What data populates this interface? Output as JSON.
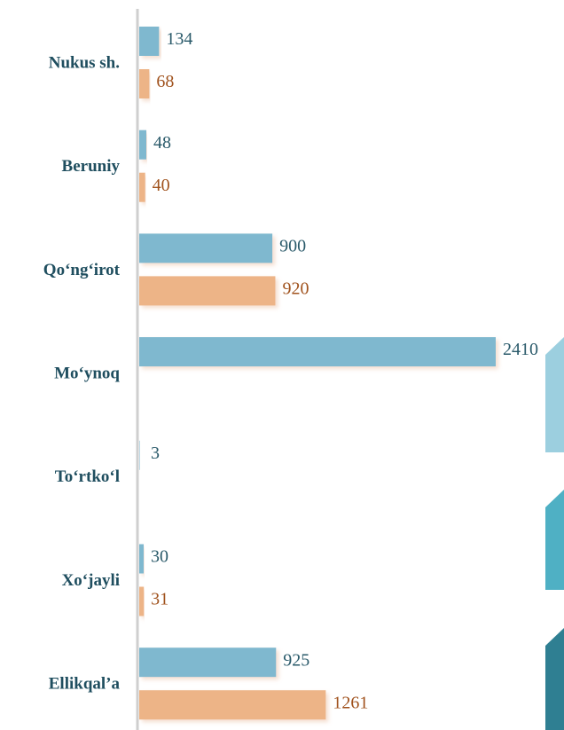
{
  "chart_data": {
    "type": "bar",
    "orientation": "horizontal",
    "categories": [
      "Nukus sh.",
      "Beruniy",
      "Qo‘ng‘irot",
      "Mo‘ynoq",
      "To‘rtko‘l",
      "Xo‘jayli",
      "Ellikqal’a"
    ],
    "series": [
      {
        "color": "#7fb8cf",
        "label_color": "#2a5a6a",
        "values": [
          134,
          48,
          900,
          2410,
          3,
          30,
          925
        ]
      },
      {
        "color": "#edb487",
        "label_color": "#a0521d",
        "values": [
          68,
          40,
          920,
          null,
          null,
          31,
          1261
        ]
      }
    ]
  }
}
